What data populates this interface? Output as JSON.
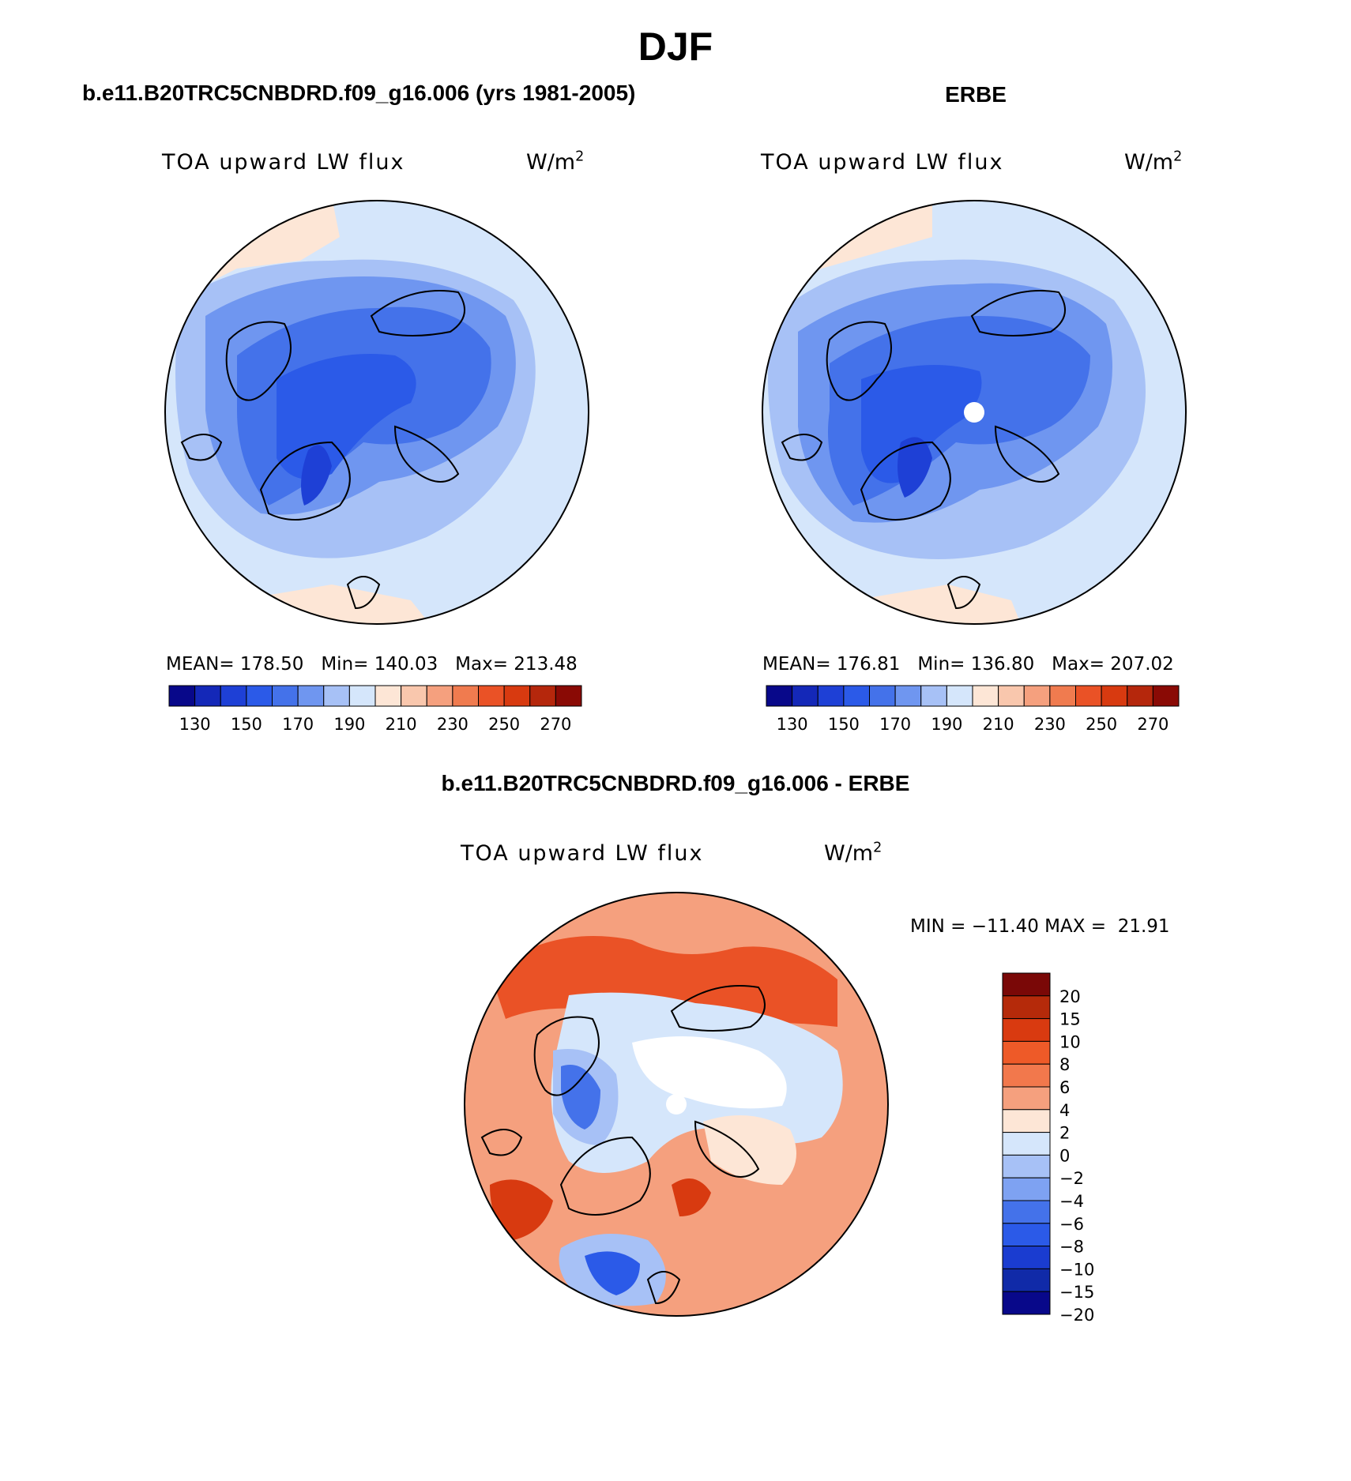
{
  "title": "DJF",
  "variable": {
    "name": "TOA upward LW flux",
    "unit_base": "W/m",
    "unit_exp": "2"
  },
  "panels": {
    "model": {
      "header": "b.e11.B20TRC5CNBDRD.f09_g16.006 (yrs 1981-2005)",
      "stats": {
        "mean_label": "MEAN=",
        "mean": "178.50",
        "min_label": "Min=",
        "min": "140.03",
        "max_label": "Max=",
        "max": "213.48"
      }
    },
    "obs": {
      "header": "ERBE",
      "stats": {
        "mean_label": "MEAN=",
        "mean": "176.81",
        "min_label": "Min=",
        "min": "136.80",
        "max_label": "Max=",
        "max": "207.02"
      }
    },
    "diff": {
      "header": "b.e11.B20TRC5CNBDRD.f09_g16.006 - ERBE",
      "minmax_text": "MIN = −11.40 MAX =  21.91"
    }
  },
  "colorbar_abs": {
    "colors": [
      "#08088a",
      "#1428b8",
      "#1e40d6",
      "#2b5ae8",
      "#4472ea",
      "#6f96f0",
      "#a7c1f6",
      "#d5e6fb",
      "#fde6d6",
      "#f9c7ad",
      "#f5a07e",
      "#f07b4f",
      "#ea5226",
      "#d83a10",
      "#b5270c",
      "#8a0a05"
    ],
    "labels": [
      "130",
      "150",
      "170",
      "190",
      "210",
      "230",
      "250",
      "270"
    ]
  },
  "colorbar_diff": {
    "colors": [
      "#7a0807",
      "#b52a0a",
      "#d93a10",
      "#ee5a28",
      "#f2784c",
      "#f5a07e",
      "#fde6d6",
      "#d5e6fb",
      "#a7c1f6",
      "#7ea2f2",
      "#4472ea",
      "#2b5ae8",
      "#1a3cd0",
      "#102aa8",
      "#08088a"
    ],
    "labels": [
      "20",
      "15",
      "10",
      "8",
      "6",
      "4",
      "2",
      "0",
      "−2",
      "−4",
      "−6",
      "−8",
      "−10",
      "−15",
      "−20"
    ]
  }
}
